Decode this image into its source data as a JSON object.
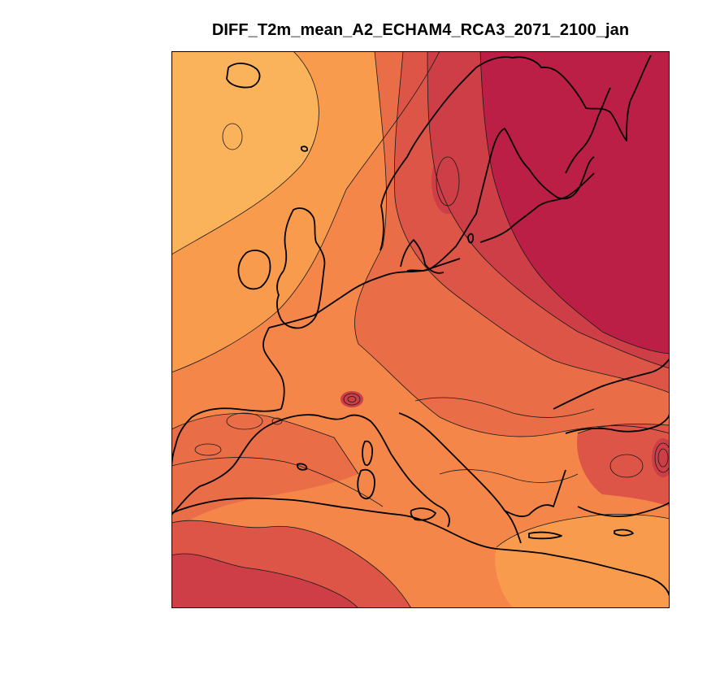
{
  "title": "DIFF_T2m_mean_A2_ECHAM4_RCA3_2071_2100_jan",
  "colors": {
    "level_1": "#fbb35b",
    "level_2": "#f99b4c",
    "level_3": "#f4864a",
    "level_4": "#e96d47",
    "level_5": "#dc5546",
    "level_6": "#cd3e46",
    "level_7": "#bb1f45",
    "coastline": "#000000",
    "contour_line": "#1a1a1a",
    "frame": "#000000"
  }
}
